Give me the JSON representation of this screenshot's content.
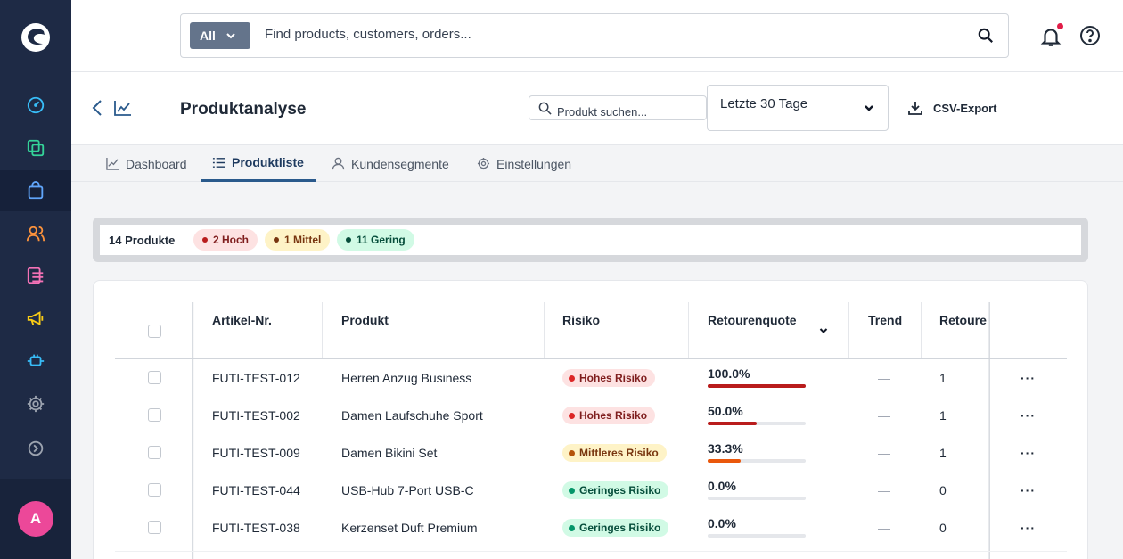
{
  "topbar": {
    "scope_label": "All",
    "search_placeholder": "Find products, customers, orders..."
  },
  "sidebar": {
    "items": [
      {
        "name": "dashboard",
        "icon": "speedometer-icon",
        "color": "#38bdf8"
      },
      {
        "name": "content",
        "icon": "layers-icon",
        "color": "#34d399"
      },
      {
        "name": "orders",
        "icon": "shopping-bag-icon",
        "color": "#60a5fa",
        "active": true
      },
      {
        "name": "customers",
        "icon": "users-icon",
        "color": "#fb923c"
      },
      {
        "name": "content-lists",
        "icon": "list-icon",
        "color": "#f472b6"
      },
      {
        "name": "marketing",
        "icon": "megaphone-icon",
        "color": "#facc15"
      },
      {
        "name": "extensions",
        "icon": "plug-icon",
        "color": "#38bdf8"
      },
      {
        "name": "settings",
        "icon": "gear-icon",
        "color": "#9ca3af"
      },
      {
        "name": "more",
        "icon": "circle-arrow-icon",
        "color": "#9ca3af"
      }
    ],
    "avatar_initial": "A"
  },
  "header": {
    "title": "Produktanalyse",
    "product_search_placeholder": "Produkt suchen...",
    "date_range": "Letzte 30 Tage",
    "csv_export": "CSV-Export"
  },
  "tabs": [
    {
      "label": "Dashboard",
      "icon": "line-chart-icon"
    },
    {
      "label": "Produktliste",
      "icon": "list-icon",
      "active": true
    },
    {
      "label": "Kundensegmente",
      "icon": "user-icon"
    },
    {
      "label": "Einstellungen",
      "icon": "gear-icon"
    }
  ],
  "summary": {
    "count": "14 Produkte",
    "high": "2 Hoch",
    "medium": "1 Mittel",
    "low": "11 Gering"
  },
  "table": {
    "columns": [
      "Artikel-Nr.",
      "Produkt",
      "Risiko",
      "Retourenquote",
      "Trend",
      "Retoure"
    ],
    "rows": [
      {
        "sku": "FUTI-TEST-012",
        "product": "Herren Anzug Business",
        "risk": "Hohes Risiko",
        "level": "high",
        "rate": "100.0%",
        "rate_value": 1.0,
        "trend": "—",
        "returns": "1"
      },
      {
        "sku": "FUTI-TEST-002",
        "product": "Damen Laufschuhe Sport",
        "risk": "Hohes Risiko",
        "level": "high",
        "rate": "50.0%",
        "rate_value": 0.5,
        "trend": "—",
        "returns": "1"
      },
      {
        "sku": "FUTI-TEST-009",
        "product": "Damen Bikini Set",
        "risk": "Mittleres Risiko",
        "level": "medium",
        "rate": "33.3%",
        "rate_value": 0.333,
        "trend": "—",
        "returns": "1"
      },
      {
        "sku": "FUTI-TEST-044",
        "product": "USB-Hub 7-Port USB-C",
        "risk": "Geringes Risiko",
        "level": "low",
        "rate": "0.0%",
        "rate_value": 0.0,
        "trend": "—",
        "returns": "0"
      },
      {
        "sku": "FUTI-TEST-038",
        "product": "Kerzenset Duft Premium",
        "risk": "Geringes Risiko",
        "level": "low",
        "rate": "0.0%",
        "rate_value": 0.0,
        "trend": "—",
        "returns": "0"
      }
    ],
    "row_action": "···"
  },
  "colors": {
    "high_bg": "#fde2e2",
    "high_dot": "#dc2626",
    "high_text": "#7f1d1d",
    "high_bar": "#b91c1c",
    "medium_bg": "#fef3c7",
    "medium_dot": "#b45309",
    "medium_text": "#78350f",
    "medium_bar": "#ea580c",
    "low_bg": "#d1fae5",
    "low_dot": "#059669",
    "low_text": "#064e3b",
    "low_bar": "#10b981"
  }
}
